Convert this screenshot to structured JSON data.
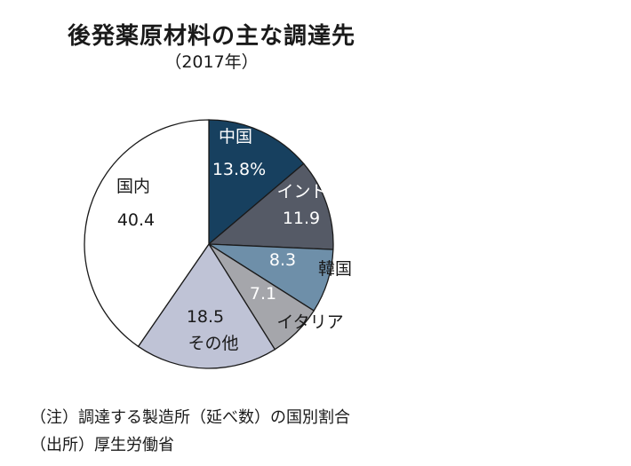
{
  "title": "後発薬原材料の主な調達先",
  "subtitle": "（2017年）",
  "notes": {
    "note": "（注）調達する製造所（延べ数）の国別割合",
    "source": "（出所）厚生労働省"
  },
  "chart_data": {
    "type": "pie",
    "title": "後発薬原材料の主な調達先",
    "subtitle": "（2017年）",
    "start": "12 o'clock",
    "direction": "clockwise",
    "slices": [
      {
        "label": "中国",
        "value": 13.8,
        "value_text": "13.8%",
        "color": "#17405f",
        "text_color": "#ffffff"
      },
      {
        "label": "インド",
        "value": 11.9,
        "value_text": "11.9",
        "color": "#555a66",
        "text_color": "#ffffff"
      },
      {
        "label": "韓国",
        "value": 8.3,
        "value_text": "8.3",
        "color": "#6e8fa9",
        "text_color": "#ffffff"
      },
      {
        "label": "イタリア",
        "value": 7.1,
        "value_text": "7.1",
        "color": "#a5a6ab",
        "text_color": "#ffffff"
      },
      {
        "label": "その他",
        "value": 18.5,
        "value_text": "18.5",
        "color": "#bfc3d6",
        "text_color": "#1a1a1a"
      },
      {
        "label": "国内",
        "value": 40.4,
        "value_text": "40.4",
        "color": "#ffffff",
        "text_color": "#1a1a1a"
      }
    ]
  }
}
